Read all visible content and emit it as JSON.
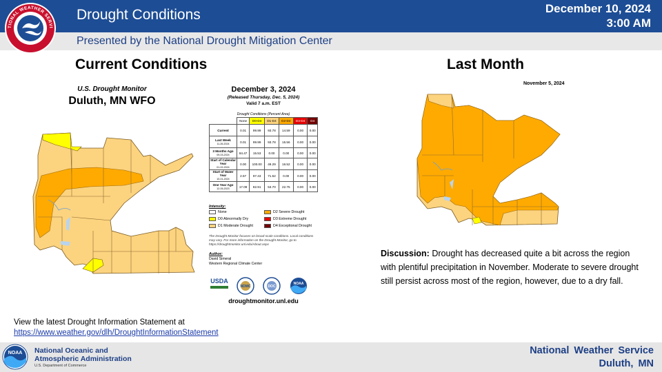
{
  "header": {
    "title": "Drought Conditions",
    "date": "December 10, 2024",
    "time": "3:00 AM",
    "presented_by": "Presented by the National Drought Mitigation Center",
    "logo": "nws-logo",
    "logo_text": "NATIONAL WEATHER SERVICE"
  },
  "current": {
    "heading": "Current Conditions",
    "map_title_1": "U.S. Drought Monitor",
    "map_title_2": "Duluth, MN WFO",
    "date": "December 3, 2024",
    "released": "(Released Thursday, Dec. 5, 2024)",
    "valid": "Valid 7 a.m. EST",
    "table_caption": "Drought Conditions (Percent Area)",
    "table_columns": [
      "None",
      "D0-D4",
      "D1-D4",
      "D2-D4",
      "D3-D4",
      "D4"
    ],
    "table_rows": [
      {
        "label": "Current",
        "sub": "",
        "values": [
          "0.01",
          "99.99",
          "93.78",
          "14.59",
          "0.00",
          "0.00"
        ]
      },
      {
        "label": "Last Week",
        "sub": "11-26-2024",
        "values": [
          "0.01",
          "99.99",
          "93.78",
          "15.56",
          "0.00",
          "0.00"
        ]
      },
      {
        "label": "3 Months Ago",
        "sub": "09-03-2024",
        "values": [
          "84.47",
          "15.53",
          "0.00",
          "0.00",
          "0.00",
          "0.00"
        ]
      },
      {
        "label": "Start of Calendar Year",
        "sub": "01-02-2024",
        "values": [
          "0.00",
          "100.00",
          "49.29",
          "16.52",
          "0.00",
          "0.00"
        ]
      },
      {
        "label": "Start of Water Year",
        "sub": "10-01-2024",
        "values": [
          "2.57",
          "97.43",
          "71.52",
          "0.00",
          "0.00",
          "0.00"
        ]
      },
      {
        "label": "One Year Ago",
        "sub": "12-05-2023",
        "values": [
          "17.09",
          "82.91",
          "53.70",
          "22.75",
          "0.00",
          "0.00"
        ]
      }
    ],
    "intensity_label": "Intensity:",
    "legend": [
      {
        "label": "None",
        "color": "#ffffff"
      },
      {
        "label": "D0 Abnormally Dry",
        "color": "#ffff00"
      },
      {
        "label": "D1 Moderate Drought",
        "color": "#fcd37f"
      },
      {
        "label": "D2 Severe Drought",
        "color": "#ffaa00"
      },
      {
        "label": "D3 Extreme Drought",
        "color": "#e60000"
      },
      {
        "label": "D4 Exceptional Drought",
        "color": "#730000"
      }
    ],
    "note": "The Drought Monitor focuses on broad-scale conditions. Local conditions may vary. For more information on the Drought Monitor, go to https://droughtmonitor.unl.edu/About.aspx",
    "author_label": "Author:",
    "author_name": "David Simeral",
    "author_org": "Western Regional Climate Center",
    "partners": [
      "USDA",
      "NDMC",
      "DOC",
      "NOAA"
    ],
    "url": "droughtmonitor.unl.edu"
  },
  "last_month": {
    "heading": "Last Month",
    "date": "November 5, 2024"
  },
  "discussion": {
    "label": "Discussion:",
    "text": " Drought has decreased quite a bit across the region with plentiful precipitation in November. Moderate to severe drought still persist across most of the region, however, due to a dry fall."
  },
  "dis": {
    "text": "View the latest Drought Information Statement at",
    "link": "https://www.weather.gov/dlh/DroughtInformationStatement"
  },
  "footer": {
    "noaa_line1": "National Oceanic and",
    "noaa_line2": "Atmospheric Administration",
    "noaa_dept": "U.S. Department of Commerce",
    "noaa_logo_text": "NOAA",
    "nws_line1": "National Weather Service",
    "nws_line2": "Duluth, MN"
  },
  "colors": {
    "header_blue": "#1d4d95",
    "d0": "#ffff00",
    "d1": "#fcd37f",
    "d2": "#ffaa00",
    "water": "#b7d4f0"
  }
}
